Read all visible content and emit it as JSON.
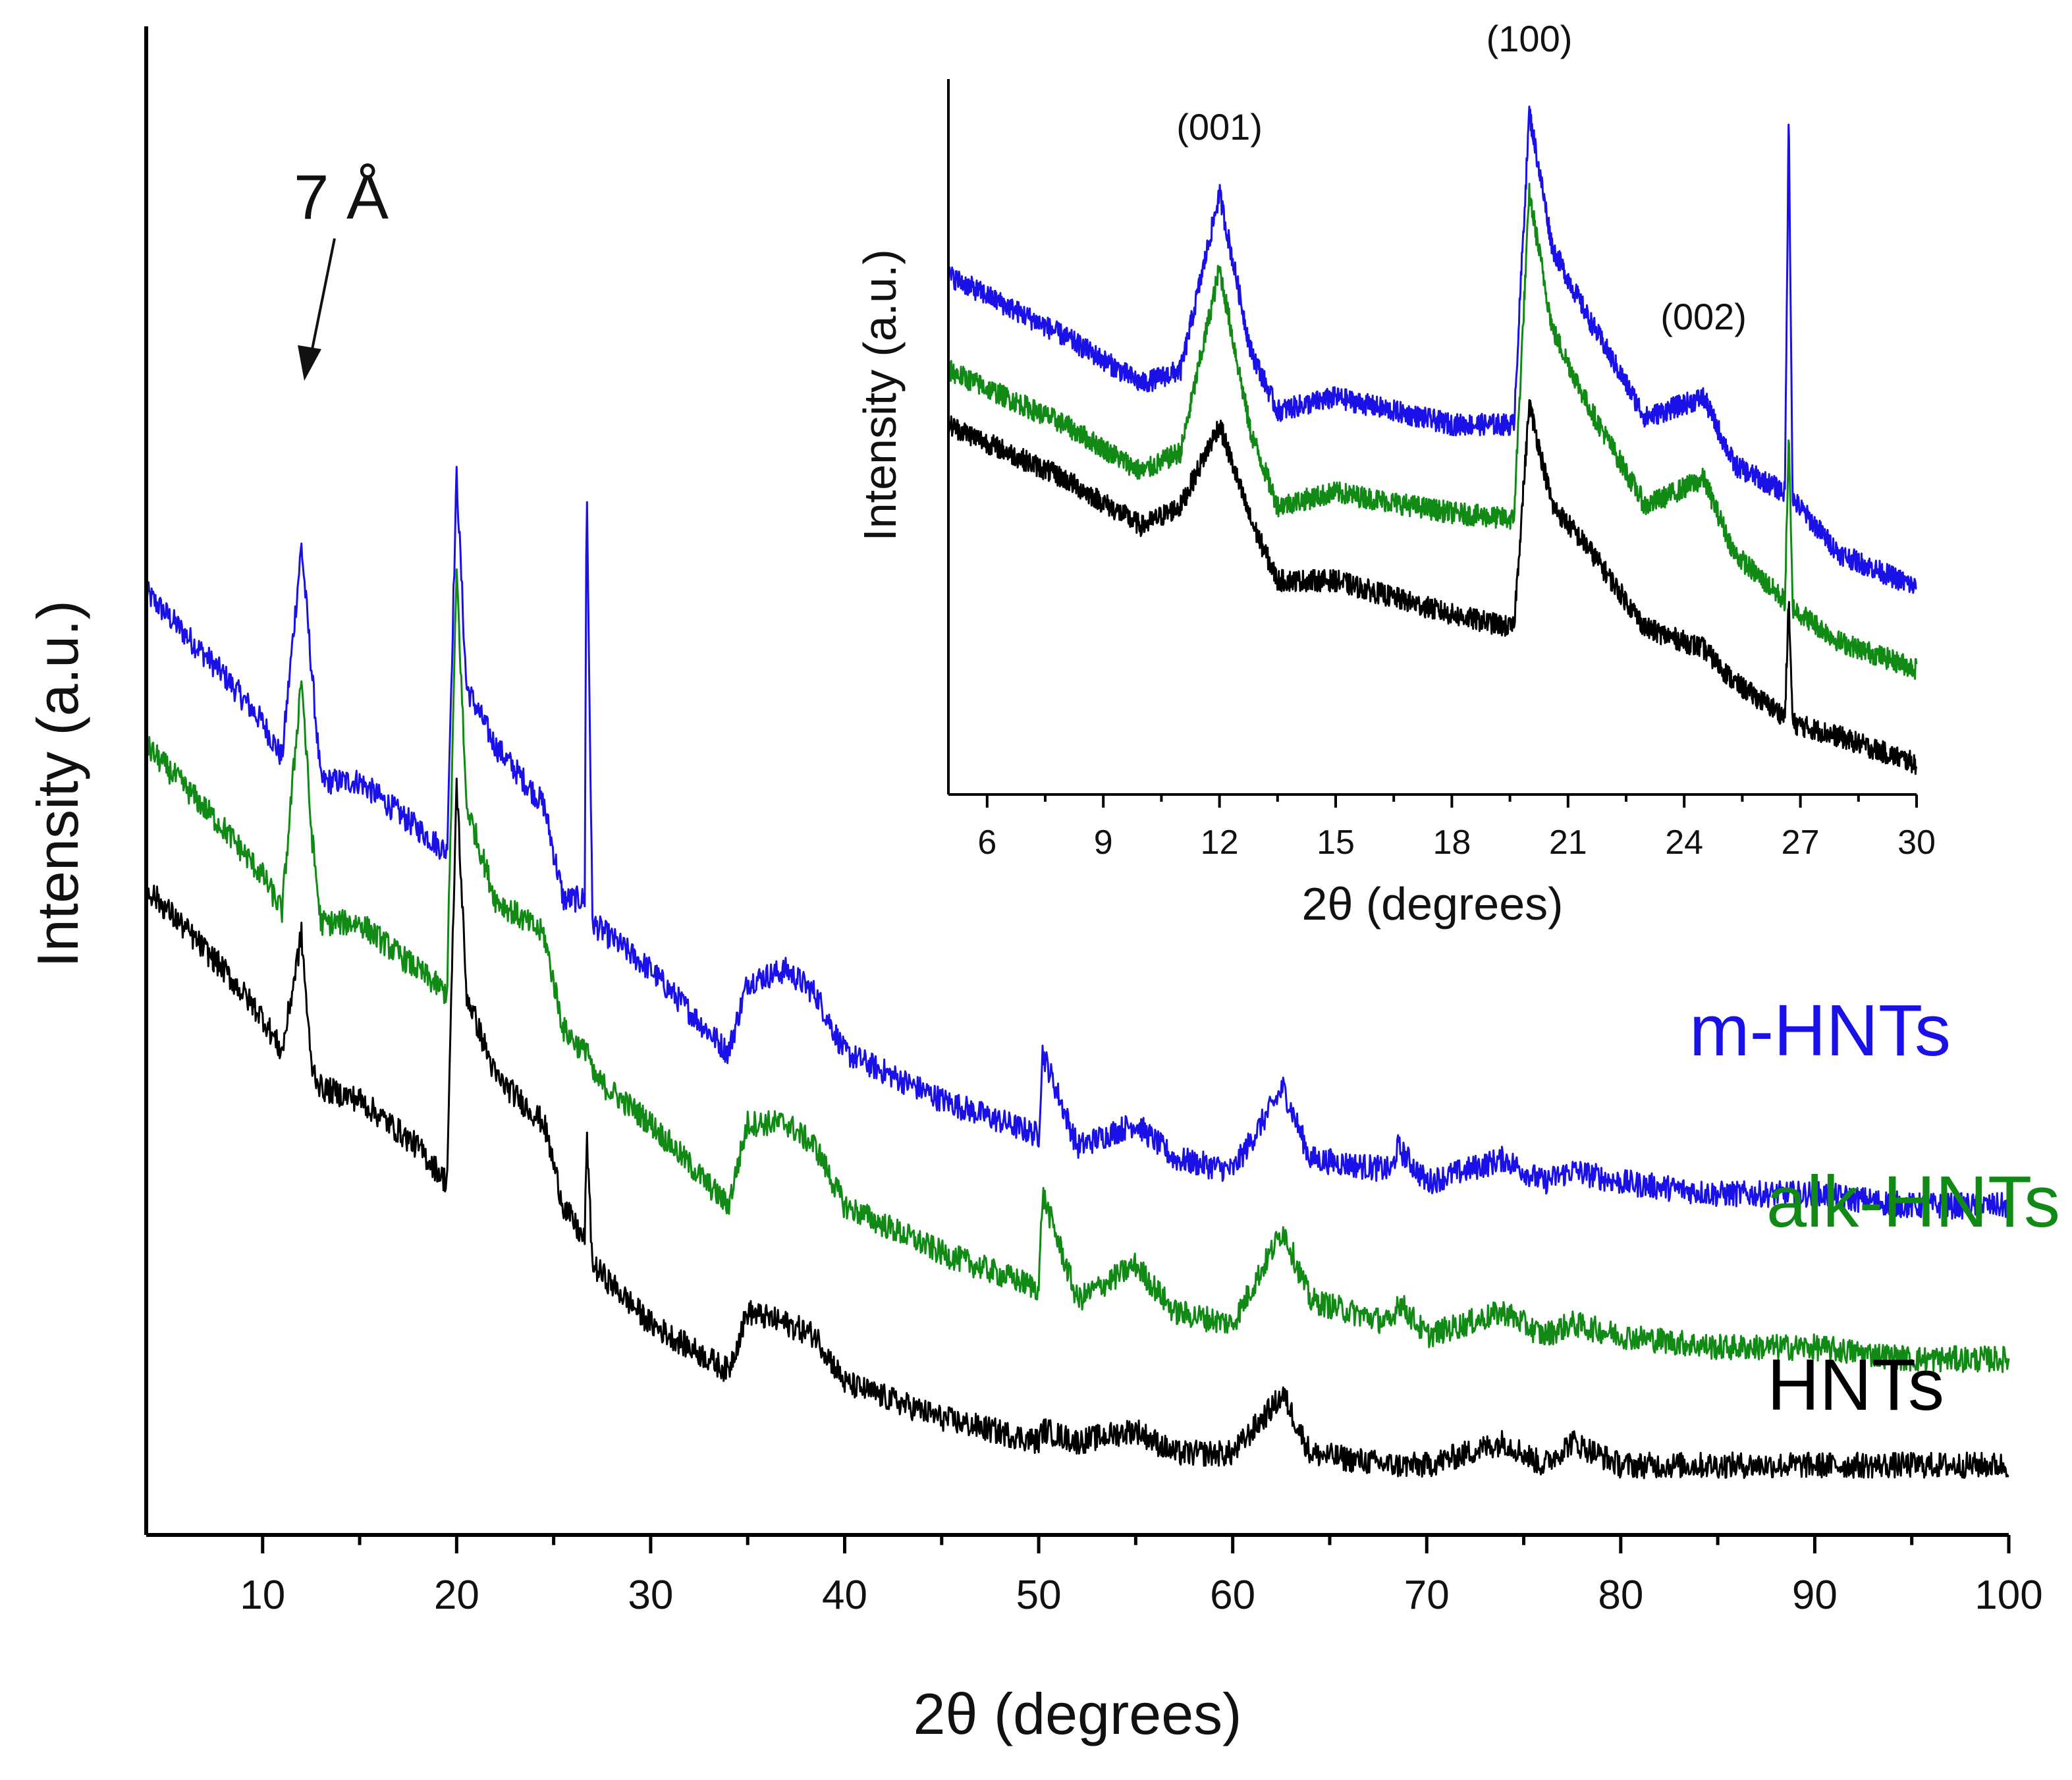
{
  "chart_data": [
    {
      "type": "line",
      "title": "",
      "xlabel": "2θ (degrees)",
      "ylabel": "Intensity (a.u.)",
      "xlim": [
        4,
        100
      ],
      "ylim": [
        0,
        100
      ],
      "xticks": [
        "10",
        "20",
        "30",
        "40",
        "50",
        "60",
        "70",
        "80",
        "90",
        "100"
      ],
      "xtick_values": [
        10,
        20,
        30,
        40,
        50,
        60,
        70,
        80,
        90,
        100
      ],
      "y_ticks_shown": false,
      "legend": "right, next to each curve",
      "series": [
        {
          "name": "m-HNTs",
          "color": "#1a10e8",
          "x": [
            4,
            8,
            10,
            11,
            12,
            12.5,
            13,
            15,
            18,
            19.5,
            20,
            20.5,
            22,
            24.5,
            25.5,
            26.6,
            26.7,
            27,
            30,
            34,
            35,
            37,
            38.5,
            40,
            45,
            50,
            50.2,
            52,
            55,
            57,
            60,
            62.6,
            64,
            68.2,
            68.5,
            70,
            74,
            76,
            77.5,
            80,
            85,
            90,
            95,
            100
          ],
          "y": [
            76,
            69,
            65,
            62,
            80,
            70,
            60,
            60,
            56,
            54,
            86,
            68,
            63,
            58,
            50,
            50,
            86,
            48,
            44,
            37,
            43,
            44,
            42,
            37,
            33,
            30,
            37,
            29,
            31,
            28,
            27,
            34,
            28,
            27,
            29,
            26,
            28,
            26,
            27,
            26,
            25,
            25,
            24,
            24
          ]
        },
        {
          "name": "alk-HNTs",
          "color": "#108a14",
          "x": [
            4,
            8,
            10,
            11,
            12,
            12.5,
            13,
            15,
            18,
            19.5,
            20,
            20.5,
            22,
            24.5,
            25.5,
            26.6,
            26.7,
            27,
            30,
            34,
            35,
            37,
            38.5,
            40,
            45,
            50,
            50.2,
            52,
            55,
            57,
            60,
            62.6,
            64,
            68.2,
            68.5,
            70,
            74,
            76,
            77.5,
            80,
            85,
            90,
            95,
            100
          ],
          "y": [
            63,
            56,
            52,
            49,
            69,
            56,
            48,
            48,
            44,
            42,
            78,
            58,
            50,
            47,
            39,
            37,
            38,
            35,
            31,
            24,
            31,
            31,
            29,
            24,
            20,
            17,
            25,
            16,
            19,
            15,
            14,
            22,
            16,
            14,
            16,
            13,
            15,
            13,
            14,
            13,
            12,
            12,
            11,
            11
          ]
        },
        {
          "name": "HNTs",
          "color": "#000000",
          "x": [
            4,
            8,
            10,
            11,
            12,
            12.5,
            13,
            15,
            18,
            19.5,
            20,
            20.5,
            22,
            24.5,
            25.5,
            26.6,
            26.7,
            27,
            30,
            34,
            35,
            37,
            38.5,
            40,
            45,
            50,
            50.2,
            52,
            55,
            57,
            60,
            62.6,
            64,
            68.2,
            68.5,
            70,
            74,
            76,
            77.5,
            80,
            85,
            90,
            95,
            100
          ],
          "y": [
            51,
            44,
            40,
            37,
            47,
            36,
            34,
            33,
            29,
            26,
            60,
            42,
            35,
            31,
            24,
            21,
            30,
            19,
            14,
            10,
            15,
            14,
            13,
            9,
            6,
            4,
            5,
            4,
            5,
            3,
            3,
            8,
            3,
            2,
            2,
            2,
            4,
            2,
            4,
            2,
            2,
            2,
            2,
            2
          ]
        }
      ],
      "annotations": [
        {
          "text": "7 Å",
          "x": 12,
          "y": 86,
          "arrow_to": [
            12,
            81
          ]
        }
      ]
    },
    {
      "type": "line",
      "title": "",
      "xlabel": "2θ (degrees)",
      "ylabel": "Intensity (a.u.)",
      "xlim": [
        5,
        30
      ],
      "ylim": [
        0,
        100
      ],
      "xticks": [
        "6",
        "9",
        "12",
        "15",
        "18",
        "21",
        "24",
        "27",
        "30"
      ],
      "xtick_values": [
        6,
        9,
        12,
        15,
        18,
        21,
        24,
        27,
        30
      ],
      "y_ticks_shown": false,
      "series": [
        {
          "name": "m-HNTs",
          "color": "#1a10e8",
          "x": [
            5,
            8,
            10,
            11,
            12,
            12.8,
            13.5,
            15,
            18,
            19.6,
            20,
            20.6,
            21.5,
            23,
            24.5,
            25.3,
            26.6,
            26.7,
            26.8,
            28,
            30
          ],
          "y": [
            74,
            65,
            58,
            60,
            86,
            63,
            54,
            56,
            52,
            52,
            98,
            78,
            68,
            53,
            56,
            46,
            42,
            98,
            41,
            33,
            28
          ]
        },
        {
          "name": "alk-HNTs",
          "color": "#108a14",
          "x": [
            5,
            8,
            10,
            11,
            12,
            12.8,
            13.5,
            15,
            18,
            19.6,
            20,
            20.6,
            21.5,
            23,
            24.5,
            25.3,
            26.6,
            26.7,
            26.8,
            28,
            30
          ],
          "y": [
            60,
            52,
            45,
            48,
            75,
            51,
            40,
            42,
            39,
            38,
            86,
            66,
            55,
            40,
            44,
            33,
            26,
            50,
            25,
            20,
            16
          ]
        },
        {
          "name": "HNTs",
          "color": "#000000",
          "x": [
            5,
            8,
            10,
            11,
            12,
            12.8,
            13.5,
            15,
            18,
            19.6,
            20,
            20.6,
            21.5,
            23,
            24.5,
            25.3,
            26.6,
            26.7,
            26.8,
            28,
            30
          ],
          "y": [
            52,
            44,
            37,
            40,
            52,
            38,
            29,
            29,
            24,
            22,
            55,
            40,
            34,
            22,
            19,
            14,
            9,
            26,
            8,
            6,
            2
          ]
        }
      ],
      "annotations": [
        {
          "text": "(001)",
          "x": 12,
          "y": 94
        },
        {
          "text": "(100)",
          "x": 20,
          "y": 107
        },
        {
          "text": "(002)",
          "x": 24.5,
          "y": 66
        }
      ]
    }
  ]
}
